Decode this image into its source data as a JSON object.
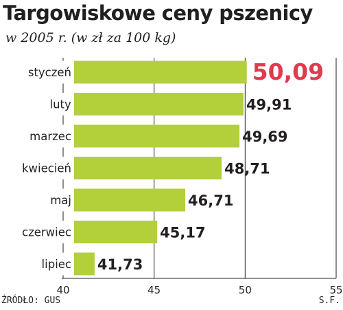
{
  "title": "Targowiskowe ceny pszenicy",
  "subtitle": "w 2005 r. (w zł za 100 kg)",
  "source": "ŹRÓDŁO: GUS",
  "credit": "S.F.",
  "colors": {
    "bar": "#b3cf3a",
    "highlight_label": "#e03a4e",
    "text": "#231f20",
    "grid": "#231f20"
  },
  "chart_data": {
    "type": "bar",
    "orientation": "horizontal",
    "categories": [
      "styczeń",
      "luty",
      "marzec",
      "kwiecień",
      "maj",
      "czerwiec",
      "lipiec"
    ],
    "values": [
      50.09,
      49.91,
      49.69,
      48.71,
      46.71,
      45.17,
      41.73
    ],
    "value_labels": [
      "50,09",
      "49,91",
      "49,69",
      "48,71",
      "46,71",
      "45,17",
      "41,73"
    ],
    "highlight_index": 0,
    "xlim": [
      40,
      55
    ],
    "xticks": [
      40,
      45,
      50,
      55
    ],
    "xtick_labels": [
      "40",
      "45",
      "50",
      "55"
    ],
    "grid": true
  }
}
